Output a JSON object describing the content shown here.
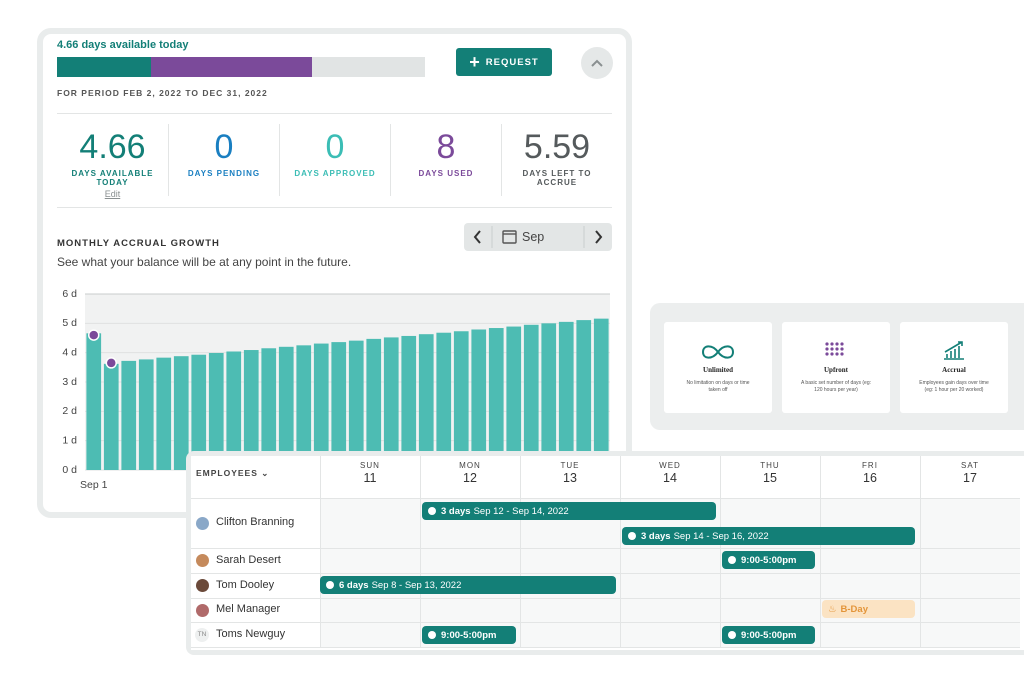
{
  "balance": {
    "headline": "4.66 days available today",
    "button": "REQUEST",
    "period": "FOR PERIOD FEB 2, 2022 TO DEC 31, 2022"
  },
  "stats": [
    {
      "value": 4.66,
      "label": "DAYS AVAILABLE TODAY",
      "link": "Edit",
      "color": "#137f77"
    },
    {
      "value": 0,
      "label": "DAYS PENDING",
      "color": "#1a7fc1"
    },
    {
      "value": 0,
      "label": "DAYS APPROVED",
      "color": "#3bbdb5"
    },
    {
      "value": 8,
      "label": "DAYS USED",
      "color": "#7b4a9a"
    },
    {
      "value": 5.59,
      "label": "DAYS LEFT TO ACCRUE",
      "color": "#555a5c"
    }
  ],
  "chart_data": {
    "type": "bar",
    "title": "MONTHLY ACCRUAL GROWTH",
    "subtitle": "See what your balance will be at any point in the future.",
    "categories": [
      "Sep 1",
      null,
      null,
      null,
      null,
      null,
      null,
      null,
      null,
      null,
      null,
      null,
      null,
      null,
      null,
      null,
      null,
      null,
      null,
      null,
      null,
      null,
      null,
      null,
      null,
      null,
      null,
      null,
      null,
      null
    ],
    "values": [
      4.66,
      3.62,
      3.72,
      3.77,
      3.83,
      3.88,
      3.93,
      3.99,
      4.04,
      4.09,
      4.15,
      4.2,
      4.25,
      4.31,
      4.36,
      4.41,
      4.47,
      4.52,
      4.57,
      4.63,
      4.68,
      4.73,
      4.79,
      4.84,
      4.89,
      4.95,
      5.0,
      5.05,
      5.11,
      5.16
    ],
    "color": "#4dbcb3",
    "points": [
      4.6,
      3.65
    ],
    "point_color": "#7b4a9a",
    "ylim": [
      0,
      6
    ],
    "yticks": [
      {
        "value": 0,
        "label": "0 d"
      },
      {
        "value": 1,
        "label": "1 d"
      },
      {
        "value": 2,
        "label": "2 d"
      },
      {
        "value": 3,
        "label": "3 d"
      },
      {
        "value": 4,
        "label": "4 d"
      },
      {
        "value": 5,
        "label": "5 d"
      },
      {
        "value": 6,
        "label": "6 d"
      }
    ],
    "grid": true
  },
  "month_picker": {
    "month": "Sep"
  },
  "policies": [
    {
      "title": "Unlimited",
      "description": "No limitation on days or time taken off"
    },
    {
      "title": "Upfront",
      "description": "A basic set number of days (eg: 120 hours per year)"
    },
    {
      "title": "Accrual",
      "description": "Employees gain days over time (eg: 1 hour per 20 worked)"
    }
  ],
  "calendar": {
    "employees_header": "EMPLOYEES",
    "days": [
      {
        "name": "SUN",
        "date": 11
      },
      {
        "name": "MON",
        "date": 12
      },
      {
        "name": "TUE",
        "date": 13
      },
      {
        "name": "WED",
        "date": 14
      },
      {
        "name": "THU",
        "date": 15
      },
      {
        "name": "FRI",
        "date": 16
      },
      {
        "name": "SAT",
        "date": 17
      }
    ],
    "rows": [
      {
        "name": "Clifton Branning",
        "events": [
          {
            "duration": "3 days",
            "dates": "Sep 12 - Sep 14, 2022"
          },
          {
            "duration": "3 days",
            "dates": "Sep 14 - Sep 16, 2022"
          }
        ]
      },
      {
        "name": "Sarah Desert",
        "events": [
          {
            "time": "9:00-5:00pm"
          }
        ]
      },
      {
        "name": "Tom Dooley",
        "events": [
          {
            "duration": "6 days",
            "dates": "Sep 8 - Sep 13, 2022"
          }
        ]
      },
      {
        "name": "Mel Manager",
        "events": [
          {
            "label": "B-Day"
          }
        ]
      },
      {
        "name": "Toms Newguy",
        "initials": "TN",
        "events": [
          {
            "time": "9:00-5:00pm"
          },
          {
            "time": "9:00-5:00pm"
          }
        ]
      }
    ]
  }
}
